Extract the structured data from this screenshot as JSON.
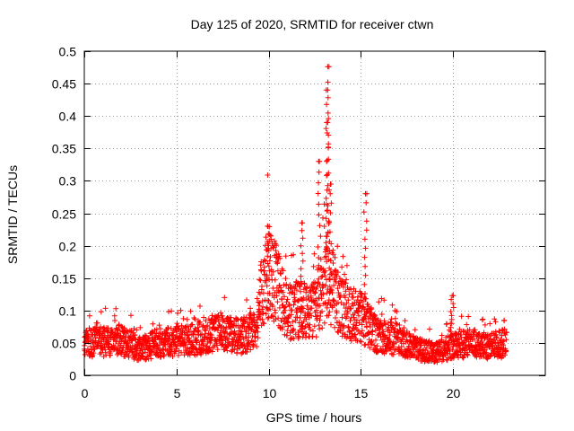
{
  "chart_data": {
    "type": "scatter",
    "title": "Day 125 of 2020, SRMTID for receiver ctwn",
    "xlabel": "GPS time / hours",
    "ylabel": "SRMTID / TECUs",
    "xlim": [
      0,
      25
    ],
    "ylim": [
      0,
      0.5
    ],
    "x_ticks": [
      0,
      5,
      10,
      15,
      20
    ],
    "x_tick_labels": [
      "0",
      "5",
      "10",
      "15",
      "20"
    ],
    "y_ticks": [
      0,
      0.05,
      0.1,
      0.15,
      0.2,
      0.25,
      0.3,
      0.35,
      0.4,
      0.45,
      0.5
    ],
    "y_tick_labels": [
      "0",
      "0.05",
      "0.1",
      "0.15",
      "0.2",
      "0.25",
      "0.3",
      "0.35",
      "0.4",
      "0.45",
      "0.5"
    ],
    "grid": true,
    "marker": "+",
    "series": [
      {
        "name": "SRMTID",
        "color": "#ff0000",
        "x_range": [
          0,
          22.9
        ],
        "point_count": 2300,
        "typical_level": [
          [
            0,
            0.05
          ],
          [
            2,
            0.055
          ],
          [
            3,
            0.04
          ],
          [
            4,
            0.05
          ],
          [
            6,
            0.055
          ],
          [
            7,
            0.065
          ],
          [
            8.5,
            0.06
          ],
          [
            9.3,
            0.07
          ],
          [
            9.6,
            0.13
          ],
          [
            10,
            0.16
          ],
          [
            10.5,
            0.14
          ],
          [
            11,
            0.1
          ],
          [
            12,
            0.1
          ],
          [
            12.5,
            0.1
          ],
          [
            13,
            0.14
          ],
          [
            13.5,
            0.14
          ],
          [
            14,
            0.1
          ],
          [
            15,
            0.09
          ],
          [
            16,
            0.06
          ],
          [
            17,
            0.055
          ],
          [
            18,
            0.04
          ],
          [
            19,
            0.035
          ],
          [
            20,
            0.045
          ],
          [
            21,
            0.05
          ],
          [
            22,
            0.045
          ],
          [
            22.9,
            0.05
          ]
        ],
        "peaks": [
          {
            "x": 9.95,
            "y": 0.23
          },
          {
            "x": 11.8,
            "y": 0.235
          },
          {
            "x": 12.75,
            "y": 0.33
          },
          {
            "x": 13.2,
            "y": 0.476
          },
          {
            "x": 13.2,
            "y": 0.44
          },
          {
            "x": 13.2,
            "y": 0.39
          },
          {
            "x": 13.35,
            "y": 0.295
          },
          {
            "x": 15.25,
            "y": 0.28
          },
          {
            "x": 19.95,
            "y": 0.123
          }
        ]
      }
    ]
  }
}
